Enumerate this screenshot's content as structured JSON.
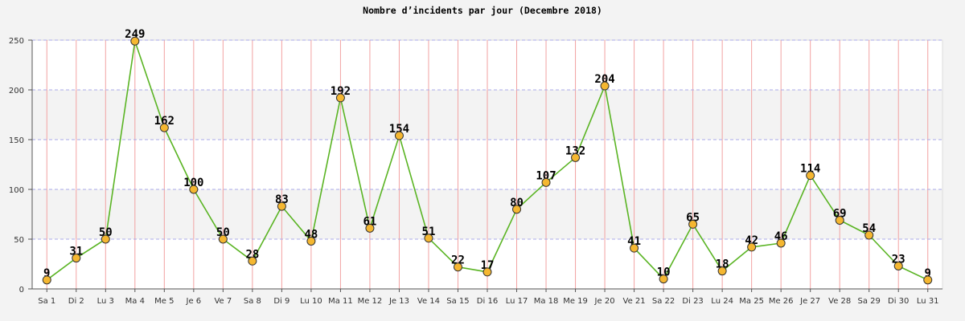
{
  "chart_data": {
    "type": "line",
    "title": "Nombre d’incidents par jour (Decembre 2018)",
    "categories": [
      "Sa 1",
      "Di 2",
      "Lu 3",
      "Ma 4",
      "Me 5",
      "Je 6",
      "Ve 7",
      "Sa 8",
      "Di 9",
      "Lu 10",
      "Ma 11",
      "Me 12",
      "Je 13",
      "Ve 14",
      "Sa 15",
      "Di 16",
      "Lu 17",
      "Ma 18",
      "Me 19",
      "Je 20",
      "Ve 21",
      "Sa 22",
      "Di 23",
      "Lu 24",
      "Ma 25",
      "Me 26",
      "Je 27",
      "Ve 28",
      "Sa 29",
      "Di 30",
      "Lu 31"
    ],
    "values": [
      9,
      31,
      50,
      249,
      162,
      100,
      50,
      28,
      83,
      48,
      192,
      61,
      154,
      51,
      22,
      17,
      80,
      107,
      132,
      204,
      41,
      10,
      65,
      18,
      42,
      46,
      114,
      69,
      54,
      23,
      9
    ],
    "ylim": [
      0,
      250
    ],
    "yticks": [
      0,
      50,
      100,
      150,
      200,
      250
    ],
    "grid": true,
    "data_labels": true,
    "colors": {
      "line": "#5ab423",
      "marker_fill": "#f5b731",
      "marker_stroke": "#333333",
      "hgrid": "#a8a8e8",
      "vgrid": "#f2a2a2",
      "band": "#f3f3f3",
      "plot_background": "#ffffff",
      "axis": "#555555"
    }
  }
}
